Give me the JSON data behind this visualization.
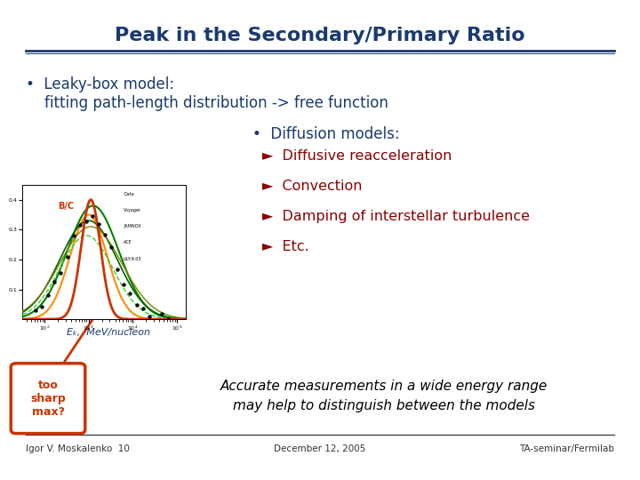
{
  "title": "Peak in the Secondary/Primary Ratio",
  "title_color": "#1a3a6e",
  "bg_color": "#ffffff",
  "bullet1_line1": "•  Leaky-box model:",
  "bullet1_line2": "    fitting path-length distribution -> free function",
  "bullet2_header": "•  Diffusion models:",
  "diffusion_items": [
    "►  Diffusive reacceleration",
    "►  Convection",
    "►  Damping of interstellar turbulence",
    "►  Etc."
  ],
  "diffusion_color": "#8b0000",
  "main_text_color": "#1a3a6e",
  "bottom_text_line1": "Accurate measurements in a wide energy range",
  "bottom_text_line2": "may help to distinguish between the models",
  "bottom_text_color": "#000000",
  "too_sharp_text": "too\nsharp\nmax?",
  "too_sharp_color": "#cc3300",
  "footer_left": "Igor V. Moskalenko  10",
  "footer_center": "December 12, 2005",
  "footer_right": "TA-seminar/Fermilab",
  "footer_color": "#333333",
  "title_underline_color": "#1a3a6e",
  "plot_label": "B/C",
  "plot_xlabel": "Eₖ,  MeV/nucleon"
}
